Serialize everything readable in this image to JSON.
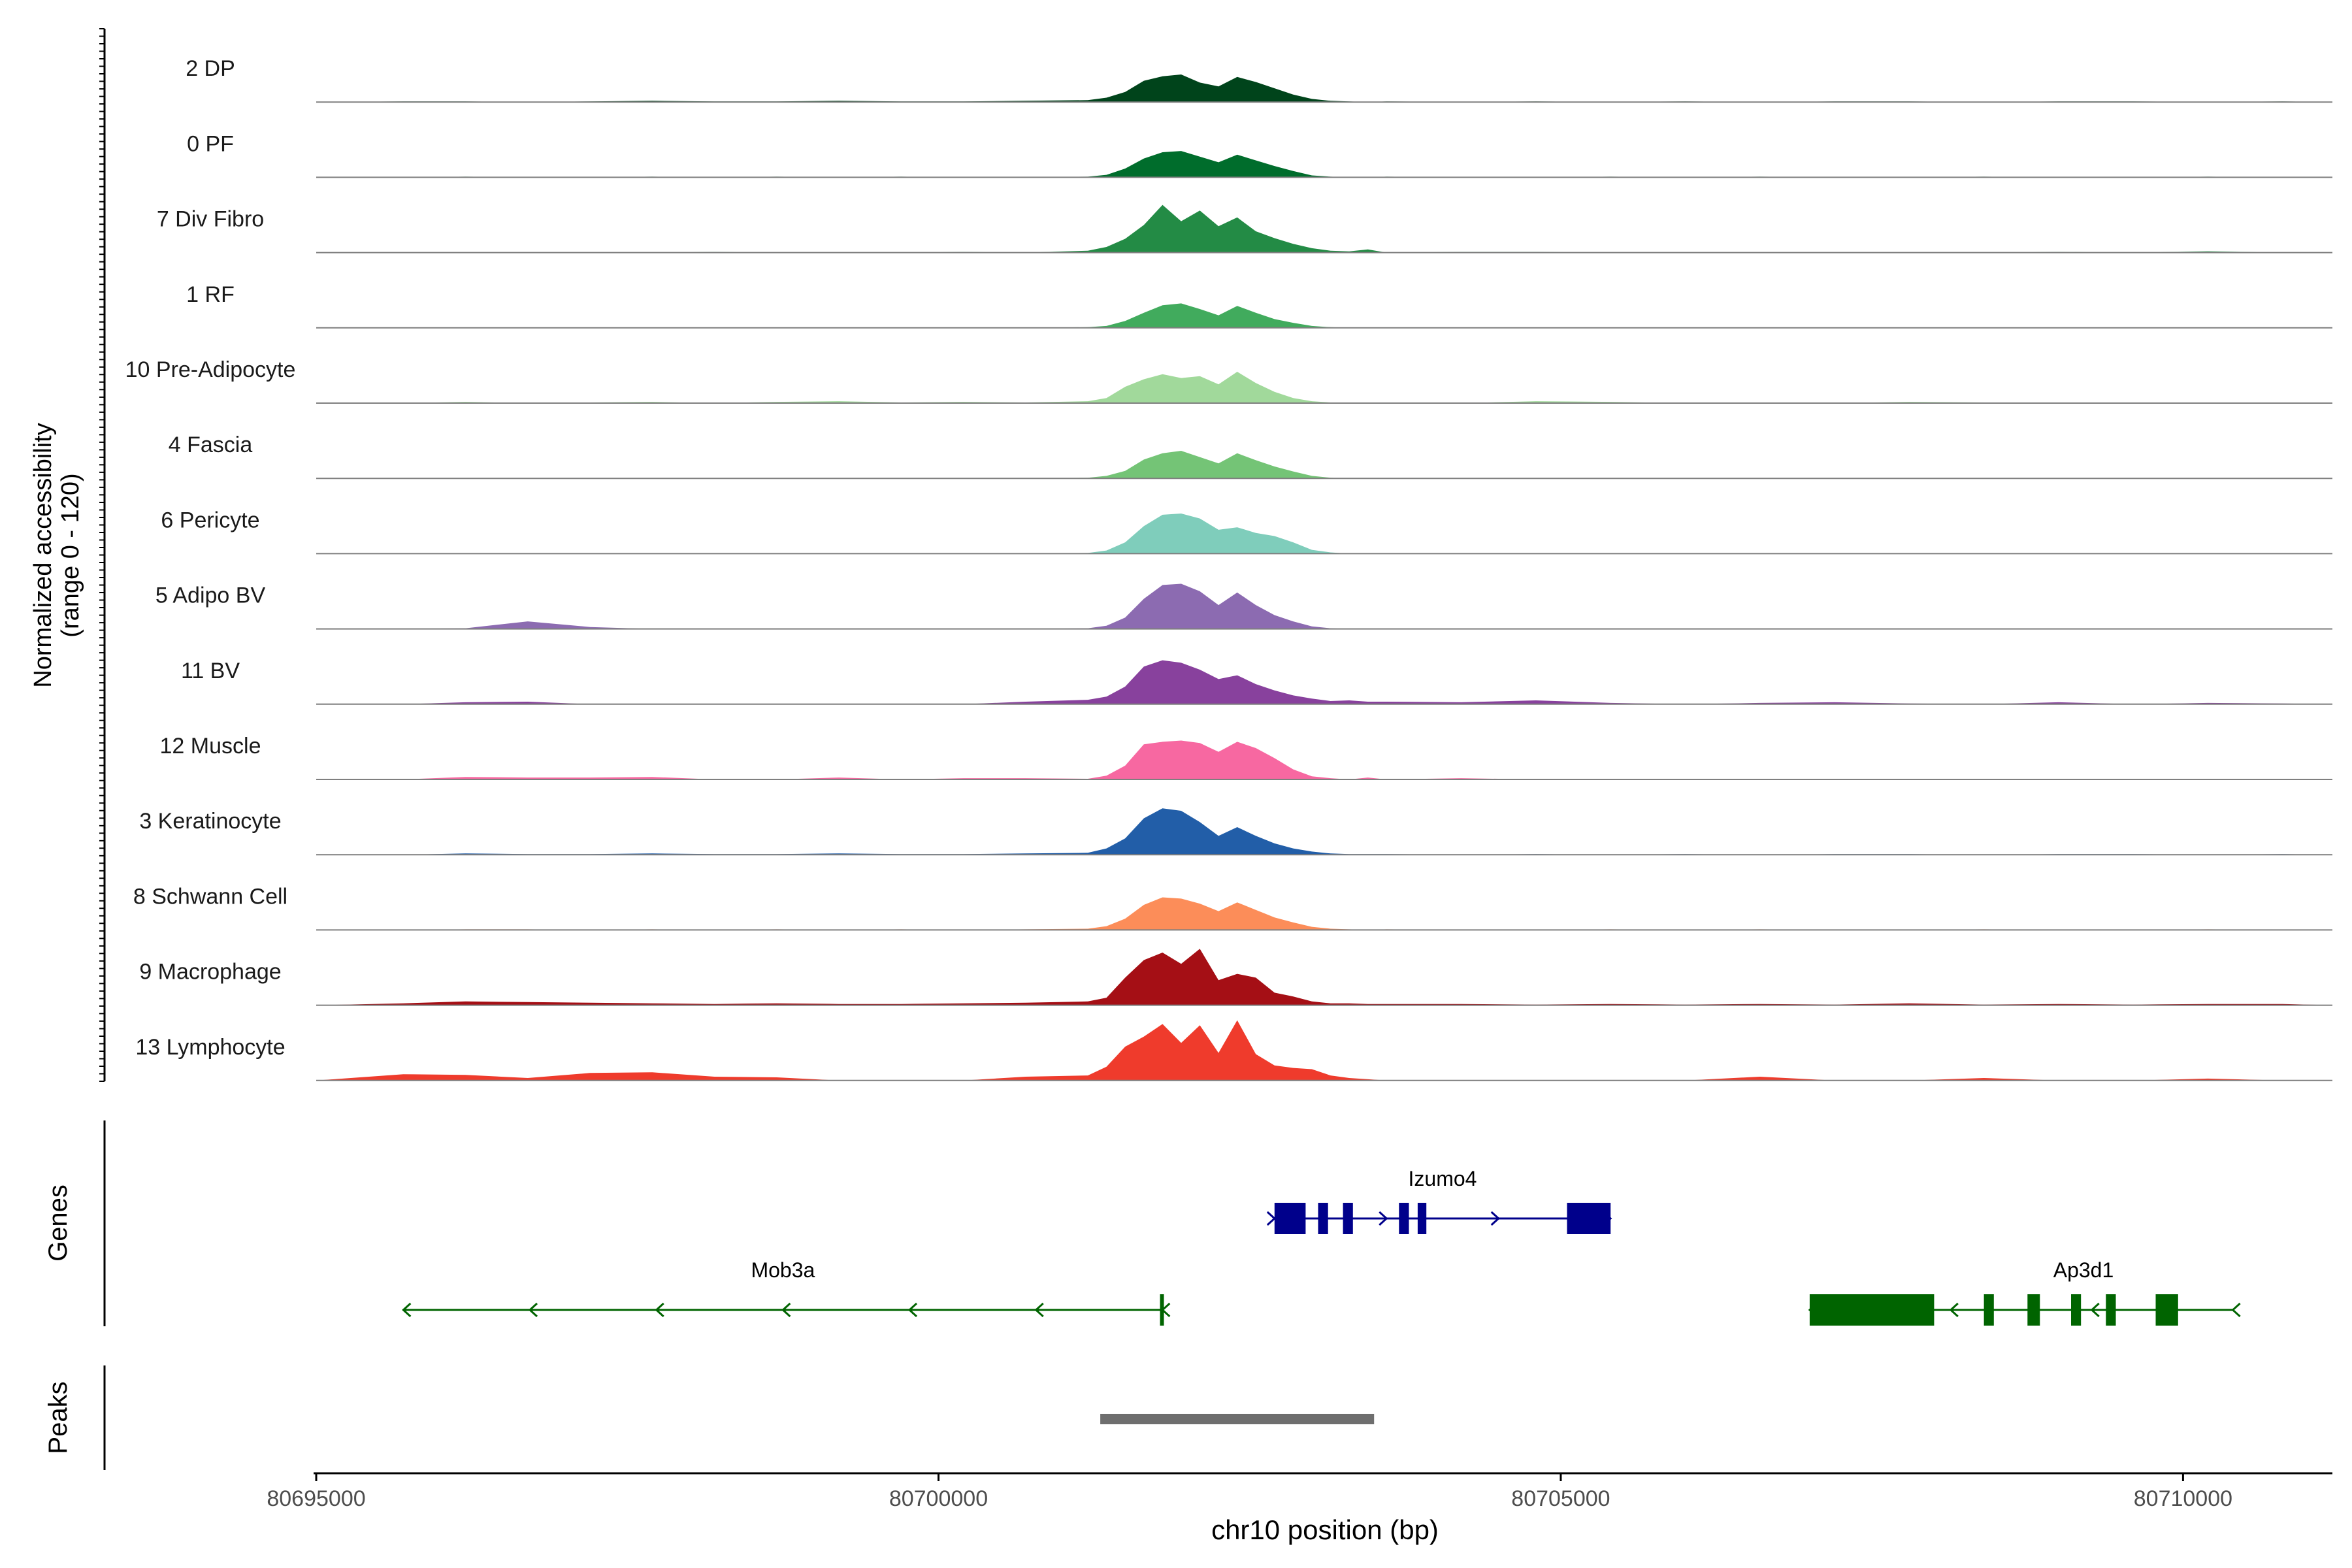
{
  "chart_data": {
    "type": "area",
    "title": "",
    "ylabel_line1": "Normalized accessibility",
    "ylabel_line2": "(range 0 - 120)",
    "xlabel": "chr10 position (bp)",
    "xlim": [
      80695000,
      80711200
    ],
    "x_ticks": [
      {
        "value": 80695000,
        "label": "80695000"
      },
      {
        "value": 80700000,
        "label": "80700000"
      },
      {
        "value": 80705000,
        "label": "80705000"
      },
      {
        "value": 80710000,
        "label": "80710000"
      }
    ],
    "ylim": [
      0,
      120
    ],
    "track_grid_x": [
      80695000,
      80695700,
      80696200,
      80696700,
      80697200,
      80697700,
      80698200,
      80698700,
      80699200,
      80699700,
      80700200,
      80700700,
      80701200,
      80701350,
      80701500,
      80701650,
      80701800,
      80701950,
      80702100,
      80702250,
      80702400,
      80702550,
      80702700,
      80702850,
      80703000,
      80703150,
      80703300,
      80703450,
      80703600,
      80704200,
      80704800,
      80705400,
      80706000,
      80706600,
      80707200,
      80707800,
      80708400,
      80709000,
      80709600,
      80710200,
      80710800,
      80711200
    ],
    "series": [
      {
        "name": "2 DP",
        "color": "#00441b",
        "values": [
          0,
          1,
          1,
          0,
          1,
          2,
          1,
          1,
          2,
          1,
          1,
          2,
          3,
          7,
          16,
          34,
          41,
          44,
          31,
          25,
          40,
          32,
          22,
          12,
          5,
          2,
          1,
          0,
          1,
          0,
          1,
          0,
          1,
          0,
          1,
          1,
          0,
          1,
          1,
          0,
          1,
          0
        ]
      },
      {
        "name": "0 PF",
        "color": "#006d2c",
        "values": [
          0,
          0,
          1,
          0,
          0,
          1,
          0,
          1,
          0,
          1,
          0,
          0,
          1,
          4,
          14,
          30,
          40,
          42,
          33,
          24,
          36,
          27,
          18,
          10,
          3,
          1,
          0,
          0,
          1,
          0,
          0,
          1,
          0,
          1,
          0,
          0,
          1,
          0,
          0,
          1,
          0,
          0
        ]
      },
      {
        "name": "7 Div Fibro",
        "color": "#238b45",
        "values": [
          0,
          0,
          0,
          0,
          0,
          0,
          1,
          0,
          0,
          0,
          1,
          0,
          3,
          9,
          22,
          44,
          76,
          50,
          67,
          42,
          56,
          34,
          23,
          14,
          7,
          3,
          2,
          5,
          0,
          1,
          1,
          0,
          0,
          0,
          0,
          0,
          0,
          1,
          0,
          2,
          0,
          0
        ]
      },
      {
        "name": "1 RF",
        "color": "#41ab5d",
        "values": [
          0,
          0,
          0,
          0,
          0,
          0,
          0,
          0,
          0,
          0,
          0,
          0,
          1,
          3,
          11,
          24,
          36,
          39,
          30,
          20,
          35,
          24,
          14,
          8,
          3,
          1,
          0,
          0,
          0,
          0,
          0,
          0,
          0,
          0,
          0,
          0,
          0,
          0,
          0,
          0,
          0,
          0
        ]
      },
      {
        "name": "10 Pre-Adipocyte",
        "color": "#a1d99b",
        "values": [
          0,
          0,
          2,
          0,
          1,
          2,
          0,
          2,
          3,
          1,
          2,
          1,
          3,
          8,
          26,
          38,
          46,
          40,
          43,
          30,
          50,
          32,
          18,
          8,
          3,
          1,
          0,
          0,
          1,
          0,
          3,
          2,
          0,
          1,
          0,
          2,
          1,
          0,
          1,
          0,
          1,
          0
        ]
      },
      {
        "name": "4 Fascia",
        "color": "#74c476",
        "values": [
          0,
          0,
          0,
          0,
          0,
          0,
          0,
          0,
          0,
          0,
          0,
          0,
          1,
          4,
          12,
          30,
          40,
          44,
          34,
          24,
          40,
          29,
          19,
          11,
          4,
          1,
          0,
          0,
          0,
          0,
          0,
          0,
          0,
          0,
          0,
          0,
          0,
          0,
          0,
          0,
          0,
          0
        ]
      },
      {
        "name": "6 Pericyte",
        "color": "#7fcdbb",
        "values": [
          0,
          0,
          0,
          0,
          0,
          0,
          0,
          0,
          0,
          0,
          0,
          0,
          1,
          5,
          18,
          44,
          62,
          64,
          56,
          38,
          42,
          33,
          28,
          18,
          6,
          2,
          0,
          0,
          0,
          0,
          0,
          0,
          0,
          0,
          0,
          0,
          0,
          0,
          0,
          0,
          0,
          0
        ]
      },
      {
        "name": "5 Adipo BV",
        "color": "#8c6bb1",
        "values": [
          0,
          0,
          1,
          12,
          3,
          0,
          0,
          0,
          0,
          0,
          0,
          0,
          1,
          5,
          18,
          48,
          70,
          72,
          60,
          38,
          58,
          38,
          22,
          12,
          4,
          1,
          0,
          0,
          0,
          0,
          0,
          0,
          0,
          0,
          0,
          0,
          0,
          0,
          0,
          0,
          0,
          0
        ]
      },
      {
        "name": "11 BV",
        "color": "#88419d",
        "values": [
          0,
          0,
          3,
          4,
          0,
          0,
          0,
          0,
          0,
          0,
          0,
          4,
          7,
          12,
          28,
          60,
          70,
          66,
          55,
          40,
          46,
          32,
          22,
          14,
          9,
          5,
          6,
          4,
          4,
          3,
          6,
          2,
          0,
          2,
          3,
          1,
          0,
          3,
          0,
          2,
          1,
          0
        ]
      },
      {
        "name": "12 Muscle",
        "color": "#f768a1",
        "values": [
          0,
          0,
          4,
          3,
          3,
          4,
          0,
          0,
          3,
          0,
          2,
          2,
          1,
          6,
          22,
          56,
          60,
          62,
          58,
          44,
          60,
          50,
          34,
          16,
          5,
          2,
          0,
          3,
          0,
          2,
          0,
          0,
          0,
          0,
          0,
          0,
          0,
          0,
          0,
          0,
          0,
          0
        ]
      },
      {
        "name": "3 Keratinocyte",
        "color": "#225ea8",
        "values": [
          0,
          0,
          2,
          1,
          1,
          2,
          1,
          1,
          2,
          1,
          1,
          2,
          3,
          10,
          26,
          58,
          74,
          70,
          52,
          30,
          44,
          30,
          18,
          10,
          5,
          2,
          1,
          1,
          1,
          0,
          1,
          0,
          1,
          0,
          1,
          1,
          0,
          1,
          1,
          0,
          1,
          0
        ]
      },
      {
        "name": "8 Schwann Cell",
        "color": "#fc8d59",
        "values": [
          0,
          0,
          1,
          1,
          0,
          1,
          0,
          1,
          0,
          1,
          0,
          1,
          2,
          6,
          18,
          40,
          52,
          50,
          42,
          30,
          44,
          32,
          20,
          12,
          5,
          2,
          1,
          0,
          1,
          0,
          0,
          1,
          0,
          1,
          0,
          0,
          1,
          0,
          0,
          1,
          0,
          0
        ]
      },
      {
        "name": "9 Macrophage",
        "color": "#a50f15",
        "values": [
          0,
          3,
          6,
          5,
          4,
          3,
          2,
          3,
          2,
          2,
          3,
          4,
          6,
          12,
          44,
          72,
          84,
          66,
          90,
          40,
          50,
          44,
          20,
          14,
          6,
          3,
          3,
          2,
          2,
          2,
          1,
          2,
          1,
          2,
          1,
          3,
          1,
          2,
          1,
          2,
          2,
          0
        ]
      },
      {
        "name": "13 Lymphocyte",
        "color": "#ef3b2c",
        "values": [
          0,
          10,
          9,
          4,
          12,
          13,
          6,
          5,
          0,
          0,
          0,
          6,
          8,
          22,
          54,
          70,
          90,
          60,
          88,
          44,
          96,
          42,
          24,
          20,
          18,
          8,
          4,
          2,
          0,
          0,
          0,
          0,
          0,
          6,
          0,
          0,
          4,
          0,
          0,
          3,
          0,
          0
        ]
      }
    ],
    "genes_label": "Genes",
    "genes": [
      {
        "name": "Izumo4",
        "strand": "+",
        "color": "#00008b",
        "start": 80702700,
        "end": 80705400,
        "exons": [
          [
            80702700,
            80702950
          ],
          [
            80703050,
            80703130
          ],
          [
            80703250,
            80703330
          ],
          [
            80703700,
            80703780
          ],
          [
            80703850,
            80703920
          ],
          [
            80705050,
            80705400
          ]
        ]
      },
      {
        "name": "Mob3a",
        "strand": "-",
        "color": "#006400",
        "start": 80695700,
        "end": 80701800,
        "exons": [
          [
            80701780,
            80701810
          ]
        ]
      },
      {
        "name": "Ap3d1",
        "strand": "-",
        "color": "#006400",
        "start": 80707000,
        "end": 80710400,
        "exons": [
          [
            80707000,
            80708000
          ],
          [
            80708400,
            80708480
          ],
          [
            80708750,
            80708850
          ],
          [
            80709100,
            80709180
          ],
          [
            80709380,
            80709460
          ],
          [
            80709780,
            80709960
          ]
        ]
      }
    ],
    "peaks_label": "Peaks",
    "peaks": [
      [
        80701300,
        80703500
      ]
    ],
    "peak_color": "#6e6e6e"
  }
}
